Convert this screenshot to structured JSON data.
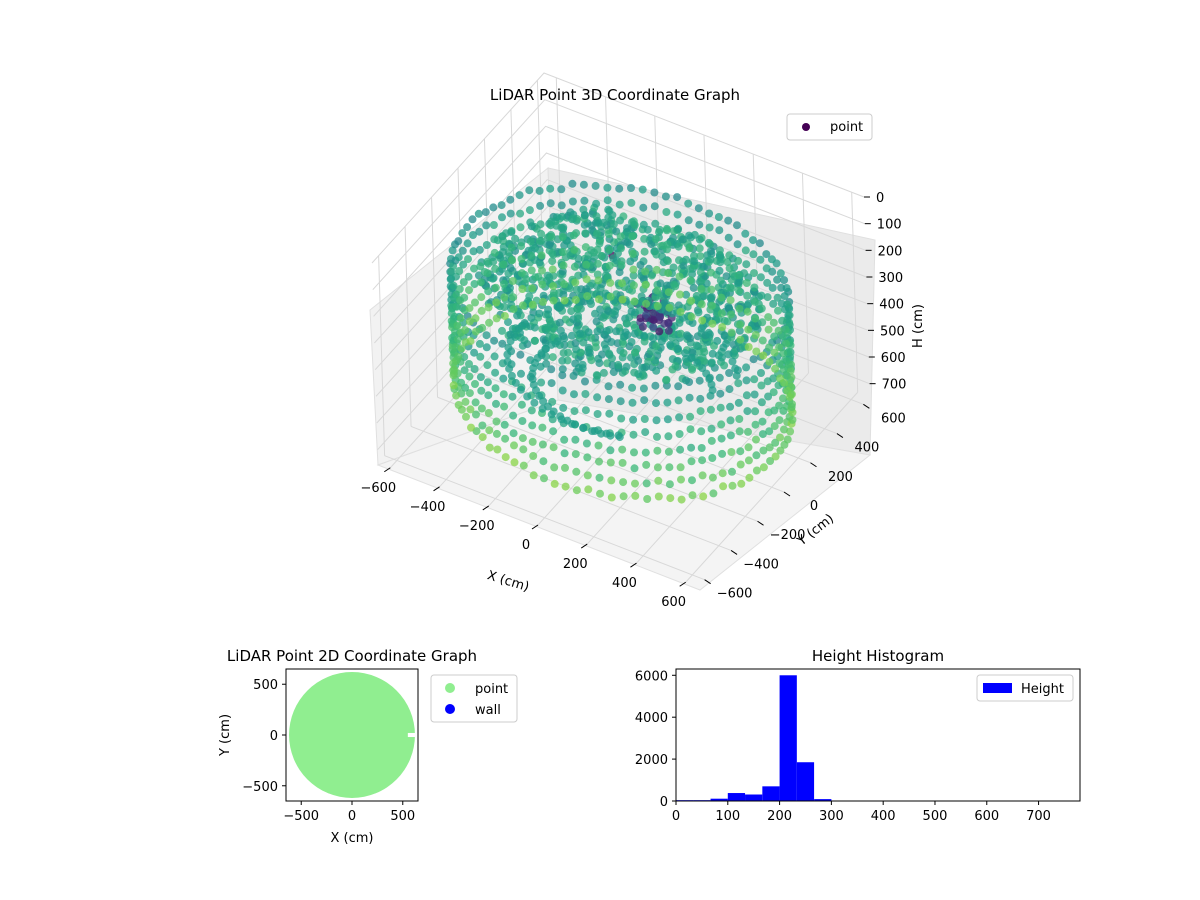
{
  "chart_data": [
    {
      "type": "scatter3d",
      "title": "LiDAR Point 3D Coordinate Graph",
      "xlabel": "X (cm)",
      "ylabel": "Y (cm)",
      "zlabel": "H (cm)",
      "xlim": [
        -650,
        650
      ],
      "ylim": [
        -650,
        650
      ],
      "zlim": [
        750,
        0
      ],
      "xticks": [
        "−600",
        "−400",
        "−200",
        "0",
        "200",
        "400",
        "600"
      ],
      "yticks": [
        "−600",
        "−400",
        "−200",
        "0",
        "200",
        "400",
        "600"
      ],
      "zticks": [
        "0",
        "100",
        "200",
        "300",
        "400",
        "500",
        "600",
        "700"
      ],
      "legend": {
        "entries": [
          "point"
        ],
        "position": "top-right"
      },
      "colormap": "viridis",
      "series": [
        {
          "name": "point",
          "structure": "ring of radius ~620 cm sampled around room walls, denser points near center",
          "ring_radius": 620,
          "height_range": [
            200,
            700
          ]
        }
      ]
    },
    {
      "type": "scatter",
      "title": "LiDAR Point 2D Coordinate Graph",
      "xlabel": "X (cm)",
      "ylabel": "Y (cm)",
      "xlim": [
        -650,
        650
      ],
      "ylim": [
        -650,
        650
      ],
      "xticks": [
        "−500",
        "0",
        "500"
      ],
      "yticks": [
        "500",
        "0",
        "−500"
      ],
      "legend": {
        "entries": [
          "point",
          "wall"
        ],
        "position": "outside-right"
      },
      "series": [
        {
          "name": "point",
          "color": "#90ee90",
          "shape": "disk",
          "radius": 620,
          "cutout": {
            "x_from": 550,
            "x_to": 650,
            "y_from": -20,
            "y_to": 20
          }
        },
        {
          "name": "wall",
          "color": "#0000ff"
        }
      ]
    },
    {
      "type": "bar",
      "title": "Height Histogram",
      "xlabel": "",
      "ylabel": "",
      "xlim": [
        0,
        780
      ],
      "ylim": [
        0,
        6300
      ],
      "xticks": [
        "0",
        "100",
        "200",
        "300",
        "400",
        "500",
        "600",
        "700"
      ],
      "yticks": [
        "0",
        "2000",
        "4000",
        "6000"
      ],
      "legend": {
        "entries": [
          "Height"
        ],
        "position": "top-right"
      },
      "series": [
        {
          "name": "Height",
          "color": "#0000ff",
          "bin_width": 33.3,
          "bins": [
            0,
            33.3,
            66.7,
            100,
            133.3,
            166.7,
            200,
            233.3,
            266.7,
            300,
            333.3,
            366.7,
            400,
            433.3,
            466.7,
            500,
            533.3,
            566.7,
            600,
            633.3,
            666.7,
            700,
            733.3
          ],
          "values": [
            40,
            40,
            110,
            380,
            310,
            700,
            6000,
            1850,
            90,
            10,
            8,
            6,
            5,
            5,
            4,
            4,
            4,
            3,
            3,
            3,
            3,
            3,
            3
          ]
        }
      ]
    }
  ]
}
